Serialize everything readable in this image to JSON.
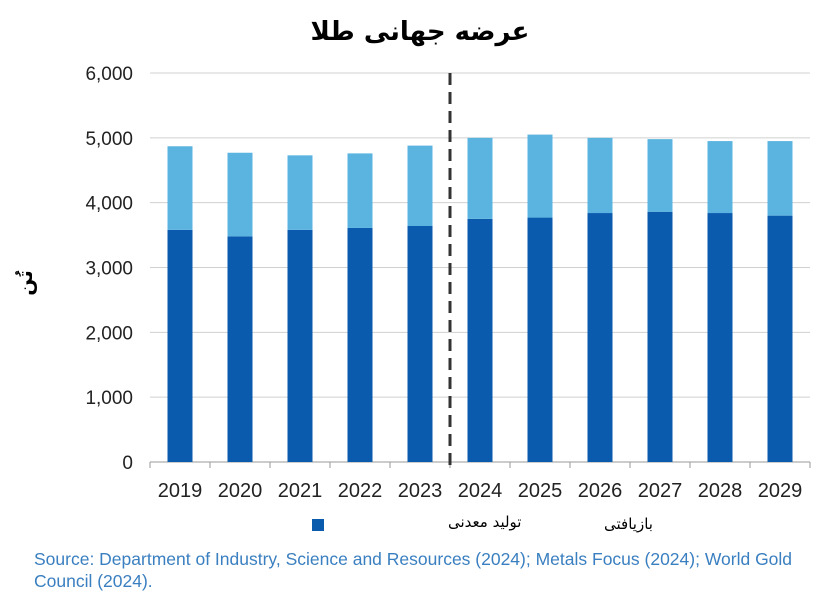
{
  "chart_data": {
    "type": "bar",
    "stacked": true,
    "title": "عرضه جهانی طلا",
    "ylabel": "تُن",
    "ylim": [
      0,
      6000
    ],
    "yticks": [
      "0",
      "1,000",
      "2,000",
      "3,000",
      "4,000",
      "5,000",
      "6,000"
    ],
    "ytick_values": [
      0,
      1000,
      2000,
      3000,
      4000,
      5000,
      6000
    ],
    "grid": true,
    "categories": [
      "2019",
      "2020",
      "2021",
      "2022",
      "2023",
      "2024",
      "2025",
      "2026",
      "2027",
      "2028",
      "2029"
    ],
    "forecast_divider_after": "2023",
    "series": [
      {
        "name": "تولید معدنی",
        "color": "#0a5aad",
        "values": [
          3580,
          3480,
          3580,
          3610,
          3640,
          3750,
          3770,
          3840,
          3860,
          3840,
          3800
        ]
      },
      {
        "name": "بازیافتی",
        "color": "#5bb4e0",
        "values": [
          1290,
          1290,
          1150,
          1150,
          1240,
          1250,
          1280,
          1160,
          1120,
          1110,
          1150
        ]
      }
    ],
    "source": "Source: Department of Industry, Science and Resources (2024); Metals Focus (2024); World Gold Council (2024)."
  }
}
